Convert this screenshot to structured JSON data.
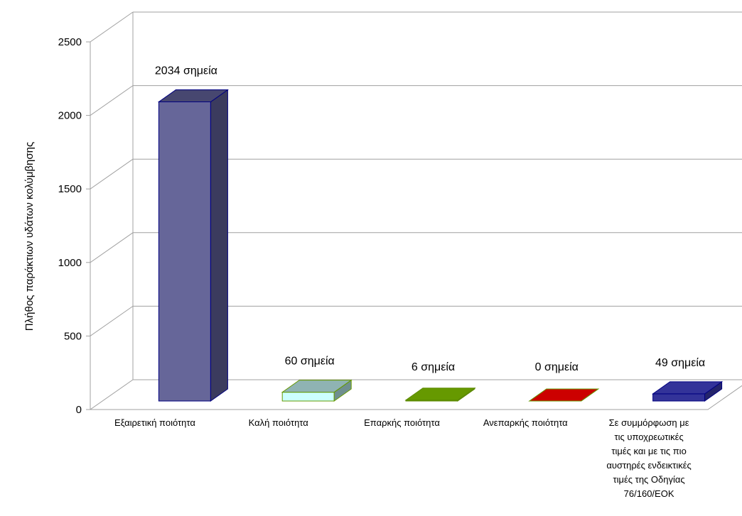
{
  "chart_data": {
    "type": "bar",
    "ylabel": "Πλήθος παράκτιων υδάτων κολύμβησης",
    "ylim": [
      0,
      2500
    ],
    "yticks": [
      0,
      500,
      1000,
      1500,
      2000,
      2500
    ],
    "grid": true,
    "categories": [
      [
        "Εξαιρετική ποιότητα"
      ],
      [
        "Καλή ποιότητα"
      ],
      [
        "Επαρκής ποιότητα"
      ],
      [
        "Ανεπαρκής ποιότητα"
      ],
      [
        "Σε συμμόρφωση με",
        "τις υποχρεωτικές",
        "τιμές και με τις πιο",
        "αυστηρές ενδεικτικές",
        "τιμές της Οδηγίας",
        "76/160/ΕΟΚ"
      ]
    ],
    "values": [
      2034,
      60,
      6,
      0,
      49
    ],
    "data_labels": [
      "2034 σημεία",
      "60 σημεία",
      "6 σημεία",
      "0 σημεία",
      "49 σημεία"
    ],
    "colors": [
      {
        "front": "#666699",
        "top": "#474770",
        "side": "#3b3b5e",
        "edge": "#000080"
      },
      {
        "front": "#ccffff",
        "top": "#8fb3b3",
        "side": "#6f8f8f",
        "edge": "#669900"
      },
      {
        "front": "#669900",
        "top": "#669900",
        "side": "#4d7300",
        "edge": "#5c8a00"
      },
      {
        "front": "#cc0000",
        "top": "#cc0000",
        "side": "#990000",
        "edge": "#669900"
      },
      {
        "front": "#333399",
        "top": "#333399",
        "side": "#24246b",
        "edge": "#000080"
      }
    ]
  }
}
